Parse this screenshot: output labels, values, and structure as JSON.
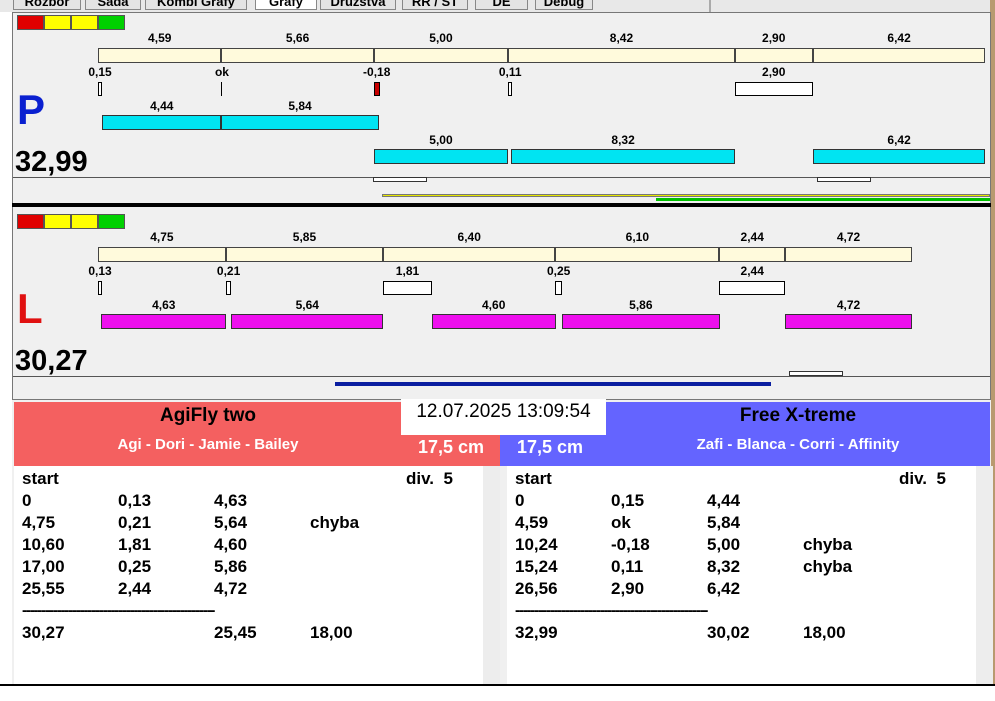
{
  "tabs": [
    "Rozbor",
    "Sada",
    "Kombi Grafy",
    "Grafy",
    "Družstva",
    "RR / ST",
    "DE",
    "Debug"
  ],
  "lanes": [
    {
      "letter": "P",
      "letter_color": "#0a20d0",
      "total": "32,99",
      "run_color": "#00e4f2",
      "splits": [
        "4,59",
        "5,66",
        "5,00",
        "8,42",
        "2,90",
        "6,42"
      ],
      "gaps": [
        "0,15",
        "ok",
        "-0,18",
        "0,11",
        "2,90",
        null
      ],
      "runs_upper": [
        "4,44",
        "5,84",
        null,
        null,
        null,
        null
      ],
      "runs_lower": [
        null,
        null,
        "5,00",
        "8,32",
        null,
        "6,42"
      ]
    },
    {
      "letter": "L",
      "letter_color": "#e01010",
      "total": "30,27",
      "run_color": "#ee10ee",
      "splits": [
        "4,75",
        "5,85",
        "6,40",
        "6,10",
        "2,44",
        "4,72"
      ],
      "gaps": [
        "0,13",
        "0,21",
        "1,81",
        "0,25",
        "2,44",
        null
      ],
      "runs_upper": [
        "4,63",
        "5,64",
        "4,60",
        "5,86",
        null,
        "4,72"
      ]
    }
  ],
  "datetime": "12.07.2025 13:09:54",
  "teams": [
    {
      "name": "AgiFly two",
      "dogs": "Agi - Dori - Jamie - Bailey",
      "height": "17,5 cm",
      "header": [
        "start",
        "div.  5"
      ],
      "rows": [
        [
          "0",
          "0,13",
          "4,63",
          null
        ],
        [
          "4,75",
          "0,21",
          "5,64",
          "chyba"
        ],
        [
          "10,60",
          "1,81",
          "4,60",
          null
        ],
        [
          "17,00",
          "0,25",
          "5,86",
          null
        ],
        [
          "25,55",
          "2,44",
          "4,72",
          null
        ]
      ],
      "divider": "--------------------------------------------------",
      "total": [
        "30,27",
        null,
        "25,45",
        "18,00"
      ]
    },
    {
      "name": "Free X-treme",
      "dogs": "Zafi - Blanca - Corri - Affinity",
      "height": "17,5 cm",
      "header": [
        "start",
        "div.  5"
      ],
      "rows": [
        [
          "0",
          "0,15",
          "4,44",
          null
        ],
        [
          "4,59",
          "ok",
          "5,84",
          null
        ],
        [
          "10,24",
          "-0,18",
          "5,00",
          "chyba"
        ],
        [
          "15,24",
          "0,11",
          "8,32",
          "chyba"
        ],
        [
          "26,56",
          "2,90",
          "6,42",
          null
        ]
      ],
      "divider": "--------------------------------------------------",
      "total": [
        "32,99",
        null,
        "30,02",
        "18,00"
      ]
    }
  ]
}
